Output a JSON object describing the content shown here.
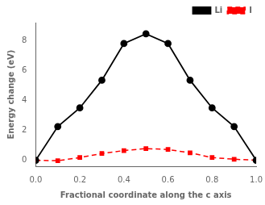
{
  "chart_data": {
    "type": "line",
    "xlabel": "Fractional coordinate along the c axis",
    "ylabel": "Energy change (eV)",
    "x": [
      0.0,
      0.1,
      0.2,
      0.3,
      0.4,
      0.5,
      0.6,
      0.7,
      0.8,
      0.9,
      1.0
    ],
    "series": [
      {
        "name": "I",
        "color": "#ff0000",
        "marker": "square",
        "line_style": "dashed",
        "values": [
          0.0,
          -0.03,
          0.18,
          0.45,
          0.65,
          0.78,
          0.72,
          0.5,
          0.18,
          0.07,
          0.0
        ]
      },
      {
        "name": "Li",
        "color": "#000000",
        "marker": "circle",
        "line_style": "solid",
        "values": [
          0.0,
          2.25,
          3.5,
          5.35,
          7.8,
          8.45,
          7.8,
          5.35,
          3.5,
          2.25,
          0.0
        ]
      }
    ],
    "xlim": [
      0.0,
      1.0
    ],
    "ylim": [
      -0.4,
      9.2
    ],
    "xticks": [
      {
        "value": 0.0,
        "label": "0.0"
      },
      0.2,
      0.4,
      0.6,
      0.8,
      {
        "value": 1.0,
        "label": "1.0"
      }
    ],
    "yticks": [
      0,
      2,
      4,
      6,
      8
    ],
    "grid": false,
    "legend": "upper right"
  }
}
